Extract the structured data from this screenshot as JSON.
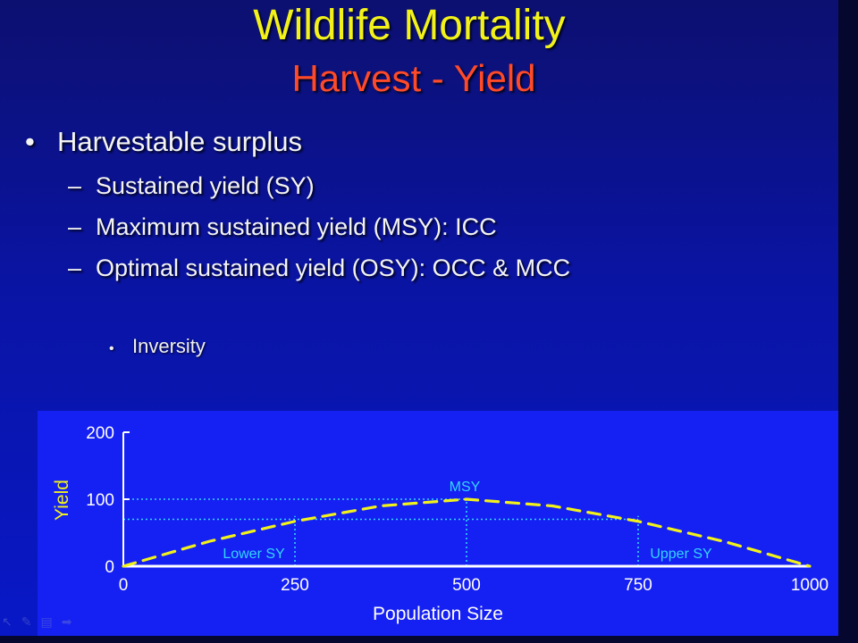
{
  "slide": {
    "title": "Wildlife Mortality",
    "subtitle": "Harvest - Yield",
    "bullets": {
      "level1": "Harvestable surplus",
      "level2": [
        "Sustained yield (SY)",
        "Maximum sustained yield (MSY): ICC",
        "Optimal sustained yield (OSY): OCC & MCC"
      ],
      "level3": "Inversity"
    },
    "markers": {
      "l1": "•",
      "l2": "–",
      "l3": "•"
    }
  },
  "chart_data": {
    "type": "line",
    "title": "",
    "xlabel": "Population Size",
    "ylabel": "Yield",
    "xlim": [
      0,
      1000
    ],
    "ylim": [
      0,
      200
    ],
    "x_ticks": [
      "0",
      "250",
      "500",
      "750",
      "1000"
    ],
    "y_ticks": [
      "0",
      "100",
      "200"
    ],
    "grid": false,
    "series": [
      {
        "name": "",
        "style": "dashed",
        "color": "#f2f21a",
        "x": [
          0,
          125,
          250,
          375,
          500,
          625,
          750,
          875,
          1000
        ],
        "y": [
          0,
          37,
          67,
          90,
          100,
          90,
          67,
          37,
          0
        ]
      }
    ],
    "reference_lines": [
      {
        "kind": "horizontal",
        "y": 100
      },
      {
        "kind": "horizontal",
        "y": 70
      },
      {
        "kind": "vertical",
        "x": 250
      },
      {
        "kind": "vertical",
        "x": 500
      },
      {
        "kind": "vertical",
        "x": 750
      }
    ],
    "annotations": [
      {
        "text": "MSY",
        "x": 500,
        "y": 100
      },
      {
        "text": "Lower SY",
        "x": 250,
        "y": 0
      },
      {
        "text": "Upper SY",
        "x": 750,
        "y": 0
      }
    ],
    "colors": {
      "axis": "#ffffff",
      "curve": "#f2f21a",
      "reference": "#33d6ff",
      "annotation": "#33d6ff",
      "background": "#1520f2"
    }
  },
  "toolbar": {
    "icons": [
      "pointer-icon",
      "pen-icon",
      "slides-icon",
      "next-arrow-icon"
    ],
    "glyphs": [
      "↖",
      "✎",
      "▤",
      "➡"
    ]
  }
}
